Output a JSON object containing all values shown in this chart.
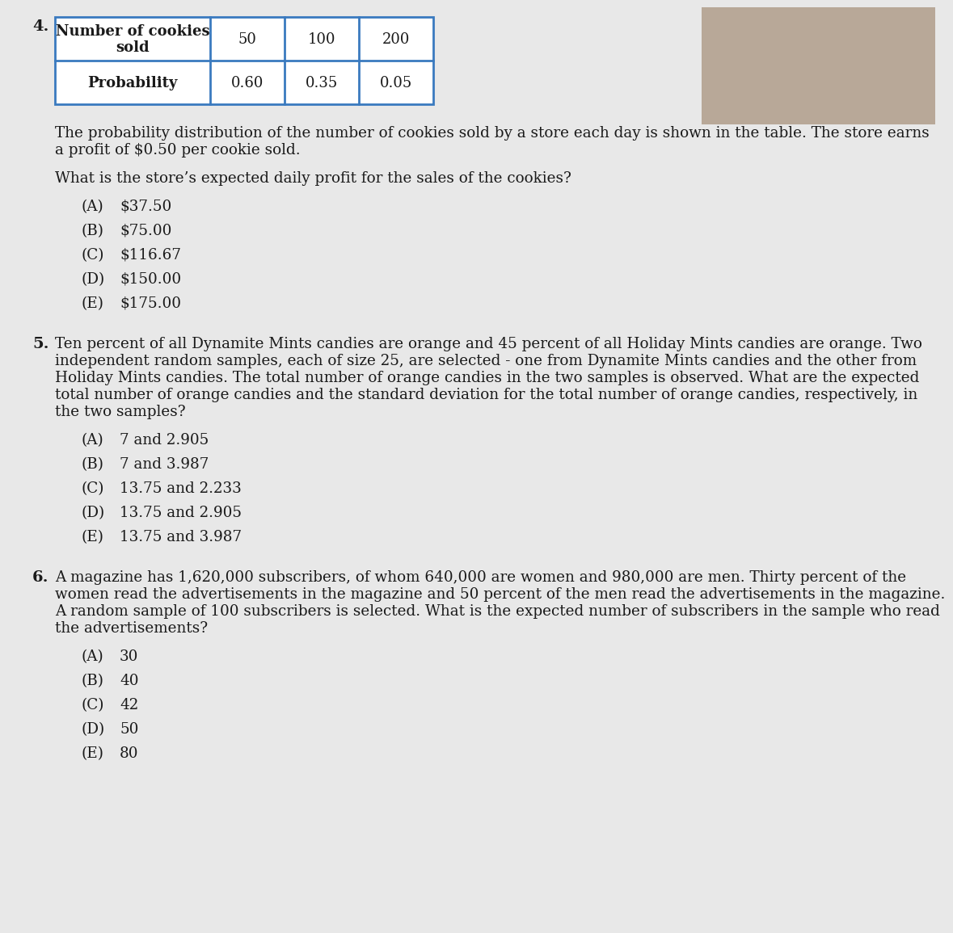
{
  "page_background": "#e8e8e8",
  "table_border_color": "#3a7abf",
  "table_header_row1": "Number of cookies",
  "table_header_row2": "sold",
  "table_cols": [
    "50",
    "100",
    "200"
  ],
  "table_probs": [
    "0.60",
    "0.35",
    "0.05"
  ],
  "q4_number": "4.",
  "q4_text_line1": "The probability distribution of the number of cookies sold by a store each day is shown in the table. The store earns",
  "q4_text_line2": "a profit of $0.50 per cookie sold.",
  "q4_question": "What is the store’s expected daily profit for the sales of the cookies?",
  "q4_options_labels": [
    "(A)",
    "(B)",
    "(C)",
    "(D)",
    "(E)"
  ],
  "q4_options_values": [
    "$37.50",
    "$75.00",
    "$116.67",
    "$150.00",
    "$175.00"
  ],
  "q5_number": "5.",
  "q5_lines": [
    "Ten percent of all Dynamite Mints candies are orange and 45 percent of all Holiday Mints candies are orange. Two",
    "independent random samples, each of size 25, are selected - one from Dynamite Mints candies and the other from",
    "Holiday Mints candies. The total number of orange candies in the two samples is observed. What are the expected",
    "total number of orange candies and the standard deviation for the total number of orange candies, respectively, in",
    "the two samples?"
  ],
  "q5_options_labels": [
    "(A)",
    "(B)",
    "(C)",
    "(D)",
    "(E)"
  ],
  "q5_options_values": [
    "7 and 2.905",
    "7 and 3.987",
    "13.75 and 2.233",
    "13.75 and 2.905",
    "13.75 and 3.987"
  ],
  "q6_number": "6.",
  "q6_lines": [
    "A magazine has 1,620,000 subscribers, of whom 640,000 are women and 980,000 are men. Thirty percent of the",
    "women read the advertisements in the magazine and 50 percent of the men read the advertisements in the magazine.",
    "A random sample of 100 subscribers is selected. What is the expected number of subscribers in the sample who read",
    "the advertisements?"
  ],
  "q6_options_labels": [
    "(A)",
    "(B)",
    "(C)",
    "(D)",
    "(E)"
  ],
  "q6_options_values": [
    "30",
    "40",
    "42",
    "50",
    "80"
  ],
  "text_color": "#1a1a1a",
  "image_color": "#b8a898",
  "body_fs": 13.2,
  "opt_fs": 13.2,
  "num_fs": 14.0,
  "table_fs": 13.0
}
